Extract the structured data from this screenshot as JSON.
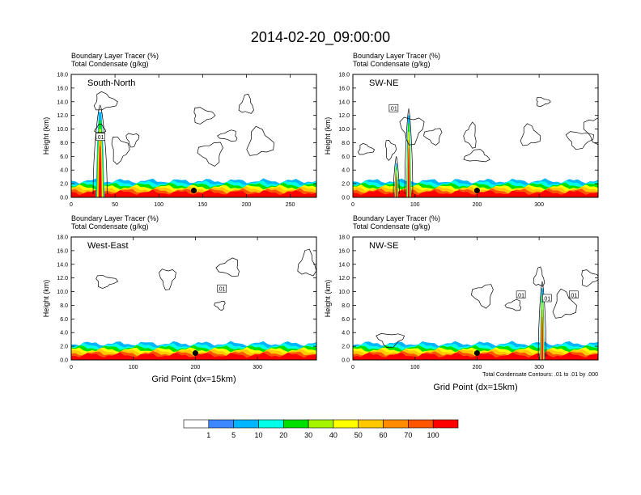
{
  "title": "2014-02-20_09:00:00",
  "chart_data": [
    {
      "type": "heatmap",
      "name": "South-North",
      "header_lines": [
        "Boundary Layer Tracer   (%)",
        "Total Condensate   (g/kg)"
      ],
      "ylabel": "Height (km)",
      "xlabel": "",
      "ylim": [
        0,
        18
      ],
      "xlim": [
        0,
        280
      ],
      "yticks": [
        "0.0",
        "2.0",
        "4.0",
        "6.0",
        "8.0",
        "10.0",
        "12.0",
        "14.0",
        "16.0",
        "18.0"
      ],
      "xticks": [
        {
          "v": 0,
          "label": "0"
        },
        {
          "v": 50,
          "label": "50"
        },
        {
          "v": 100,
          "label": "100"
        },
        {
          "v": 150,
          "label": "150"
        },
        {
          "v": 200,
          "label": "200"
        },
        {
          "v": 250,
          "label": "250"
        }
      ],
      "contour_labels": [
        {
          "x": 33,
          "y": 8.8,
          "text": ".01"
        }
      ],
      "marker": {
        "x": 140,
        "y": 1.0
      },
      "plumes": [
        {
          "x": 33,
          "top": 12.5,
          "w": 5
        }
      ],
      "clouds": [
        [
          33,
          10
        ],
        [
          38,
          14
        ],
        [
          55,
          7
        ],
        [
          70,
          8.5
        ],
        [
          160,
          6.5
        ],
        [
          180,
          9
        ],
        [
          200,
          13.5
        ],
        [
          215,
          8
        ],
        [
          150,
          12
        ]
      ]
    },
    {
      "type": "heatmap",
      "name": "SW-NE",
      "header_lines": [
        "Boundary Layer Tracer   (%)",
        "Total Condensate   (g/kg)"
      ],
      "ylabel": "Height (km)",
      "xlabel": "",
      "ylim": [
        0,
        18
      ],
      "xlim": [
        0,
        395
      ],
      "yticks": [
        "0.0",
        "2.0",
        "4.0",
        "6.0",
        "8.0",
        "10.0",
        "12.0",
        "14.0",
        "16.0",
        "18.0"
      ],
      "xticks": [
        {
          "v": 0,
          "label": "0"
        },
        {
          "v": 100,
          "label": "100"
        },
        {
          "v": 200,
          "label": "200"
        },
        {
          "v": 300,
          "label": "300"
        }
      ],
      "contour_labels": [
        {
          "x": 65,
          "y": 13.0,
          "text": ".01"
        }
      ],
      "marker": {
        "x": 200,
        "y": 1.0
      },
      "plumes": [
        {
          "x": 90,
          "top": 12.0,
          "w": 4
        },
        {
          "x": 70,
          "top": 5.0,
          "w": 3
        }
      ],
      "clouds": [
        [
          20,
          7
        ],
        [
          60,
          7
        ],
        [
          95,
          10
        ],
        [
          130,
          9
        ],
        [
          190,
          9
        ],
        [
          200,
          6
        ],
        [
          285,
          9
        ],
        [
          305,
          14
        ],
        [
          365,
          8.5
        ],
        [
          390,
          10
        ]
      ]
    },
    {
      "type": "heatmap",
      "name": "West-East",
      "header_lines": [
        "Boundary Layer Tracer   (%)",
        "Total Condensate   (g/kg)"
      ],
      "ylabel": "Height (km)",
      "xlabel": "Grid Point (dx=15km)",
      "ylim": [
        0,
        18
      ],
      "xlim": [
        0,
        395
      ],
      "yticks": [
        "0.0",
        "2.0",
        "4.0",
        "6.0",
        "8.0",
        "10.0",
        "12.0",
        "14.0",
        "16.0",
        "18.0"
      ],
      "xticks": [
        {
          "v": 0,
          "label": "0"
        },
        {
          "v": 100,
          "label": "100"
        },
        {
          "v": 200,
          "label": "200"
        },
        {
          "v": 300,
          "label": "300"
        }
      ],
      "contour_labels": [
        {
          "x": 242,
          "y": 10.4,
          "text": ".01"
        }
      ],
      "marker": {
        "x": 200,
        "y": 1.0
      },
      "plumes": [],
      "clouds": [
        [
          55,
          11.5
        ],
        [
          155,
          12
        ],
        [
          240,
          8
        ],
        [
          255,
          13.5
        ],
        [
          380,
          14
        ]
      ]
    },
    {
      "type": "heatmap",
      "name": "NW-SE",
      "header_lines": [
        "Boundary Layer Tracer   (%)",
        "Total Condensate   (g/kg)"
      ],
      "ylabel": "Height (km)",
      "xlabel": "Grid Point (dx=15km)",
      "ylim": [
        0,
        18
      ],
      "xlim": [
        0,
        395
      ],
      "yticks": [
        "0.0",
        "2.0",
        "4.0",
        "6.0",
        "8.0",
        "10.0",
        "12.0",
        "14.0",
        "16.0",
        "18.0"
      ],
      "xticks": [
        {
          "v": 0,
          "label": "0"
        },
        {
          "v": 100,
          "label": "100"
        },
        {
          "v": 200,
          "label": "200"
        },
        {
          "v": 300,
          "label": "300"
        }
      ],
      "contour_labels": [
        {
          "x": 270,
          "y": 9.5,
          "text": ".01"
        },
        {
          "x": 312,
          "y": 9.0,
          "text": ".01"
        },
        {
          "x": 355,
          "y": 9.5,
          "text": ".01"
        }
      ],
      "marker": {
        "x": 200,
        "y": 1.0
      },
      "plumes": [
        {
          "x": 305,
          "top": 10.5,
          "w": 4
        }
      ],
      "clouds": [
        [
          60,
          3.0
        ],
        [
          210,
          9.5
        ],
        [
          260,
          8
        ],
        [
          300,
          12
        ],
        [
          340,
          8
        ],
        [
          380,
          12
        ]
      ],
      "footnote": "Total Condensate Contours: .01 to .01 by .000"
    }
  ],
  "colorbar": {
    "labels": [
      "1",
      "5",
      "10",
      "20",
      "30",
      "40",
      "50",
      "60",
      "70",
      "100"
    ],
    "colors": [
      "#ffffff",
      "#3d87ff",
      "#00b7ff",
      "#00ffe6",
      "#2ff05a",
      "#00e000",
      "#a6f500",
      "#ffff00",
      "#ffc800",
      "#ff8c00",
      "#ff5500",
      "#ff0000"
    ]
  }
}
